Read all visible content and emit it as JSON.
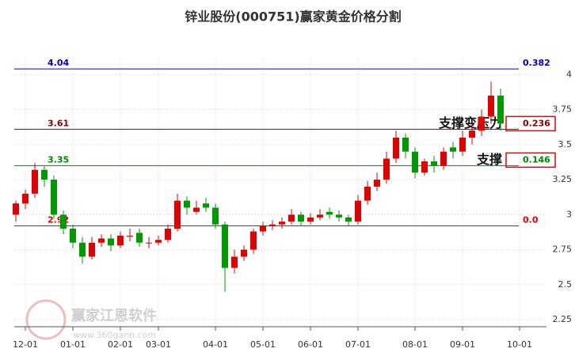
{
  "chart_data": {
    "type": "candlestick",
    "title": "锌业股份(000751)赢家黄金价格分割",
    "watermark": "赢家江恩软件",
    "watermark_url": "www.360gann.com",
    "categories": [
      null,
      "12-01",
      null,
      null,
      null,
      null,
      "01-01",
      null,
      null,
      null,
      null,
      "02-01",
      null,
      null,
      null,
      "03-01",
      null,
      null,
      null,
      null,
      null,
      "04-01",
      null,
      null,
      null,
      null,
      "05-01",
      null,
      null,
      null,
      null,
      "06-01",
      null,
      null,
      null,
      null,
      "07-01",
      null,
      null,
      null,
      null,
      null,
      "08-01",
      null,
      null,
      null,
      null,
      "09-01",
      null,
      null,
      null,
      null,
      null,
      "10-01"
    ],
    "open": [
      3.0,
      3.08,
      3.15,
      3.32,
      3.25,
      3.0,
      2.9,
      2.8,
      2.7,
      2.8,
      2.83,
      2.78,
      2.85,
      2.87,
      2.8,
      2.8,
      2.82,
      2.9,
      3.1,
      3.02,
      3.08,
      3.05,
      2.93,
      2.62,
      2.7,
      2.75,
      2.88,
      2.92,
      2.93,
      2.95,
      3.0,
      2.95,
      2.98,
      3.02,
      3.0,
      2.98,
      2.95,
      3.1,
      3.2,
      3.25,
      3.4,
      3.55,
      3.45,
      3.3,
      3.38,
      3.35,
      3.48,
      3.45,
      3.55,
      3.6,
      3.7,
      3.85,
      null,
      null
    ],
    "high": [
      3.1,
      3.18,
      3.37,
      3.35,
      3.28,
      3.03,
      2.93,
      2.84,
      2.84,
      2.86,
      2.86,
      2.88,
      2.9,
      2.9,
      2.84,
      2.85,
      2.93,
      3.15,
      3.13,
      3.1,
      3.12,
      3.08,
      2.95,
      2.75,
      2.78,
      2.9,
      2.95,
      2.96,
      2.98,
      3.04,
      3.02,
      3.01,
      3.04,
      3.05,
      3.03,
      3.0,
      3.14,
      3.24,
      3.3,
      3.45,
      3.6,
      3.58,
      3.48,
      3.4,
      3.42,
      3.48,
      3.52,
      3.6,
      3.65,
      3.75,
      3.95,
      3.9,
      null,
      null
    ],
    "low": [
      2.95,
      3.04,
      3.12,
      3.2,
      2.97,
      2.86,
      2.76,
      2.65,
      2.68,
      2.77,
      2.74,
      2.76,
      2.81,
      2.77,
      2.76,
      2.78,
      2.8,
      2.88,
      3.0,
      3.0,
      3.02,
      2.9,
      2.45,
      2.58,
      2.67,
      2.72,
      2.85,
      2.89,
      2.9,
      2.93,
      2.92,
      2.93,
      2.96,
      2.97,
      2.95,
      2.92,
      2.93,
      3.07,
      3.17,
      3.22,
      3.37,
      3.4,
      3.26,
      3.28,
      3.3,
      3.32,
      3.4,
      3.42,
      3.5,
      3.56,
      3.65,
      3.6,
      null,
      null
    ],
    "close": [
      3.08,
      3.15,
      3.32,
      3.25,
      3.0,
      2.9,
      2.8,
      2.7,
      2.8,
      2.83,
      2.78,
      2.85,
      2.85,
      2.8,
      2.8,
      2.82,
      2.9,
      3.1,
      3.05,
      3.05,
      3.05,
      2.93,
      2.62,
      2.7,
      2.75,
      2.88,
      2.92,
      2.93,
      2.95,
      3.0,
      2.95,
      2.98,
      3.0,
      3.0,
      2.98,
      2.95,
      3.1,
      3.2,
      3.25,
      3.4,
      3.55,
      3.45,
      3.3,
      3.38,
      3.35,
      3.45,
      3.45,
      3.55,
      3.6,
      3.7,
      3.85,
      3.65,
      null,
      null
    ],
    "up_color": "#e00000",
    "down_color": "#009900",
    "ylim": [
      2.2,
      4.12
    ],
    "yticks": [
      2.25,
      2.5,
      2.75,
      3,
      3.25,
      3.5,
      3.75,
      4
    ],
    "grid": true,
    "levels": [
      {
        "price": 4.04,
        "ratio": 0.382,
        "color": "#0000cc"
      },
      {
        "price": 3.61,
        "ratio": 0.236,
        "color": "#880000",
        "annotation": "支撑变压力"
      },
      {
        "price": 3.35,
        "ratio": 0.146,
        "color": "#008800",
        "annotation": "支撑"
      },
      {
        "price": 2.92,
        "ratio": {
          "value": 0,
          "label": "0.0"
        },
        "color": "#ee0000"
      }
    ]
  }
}
